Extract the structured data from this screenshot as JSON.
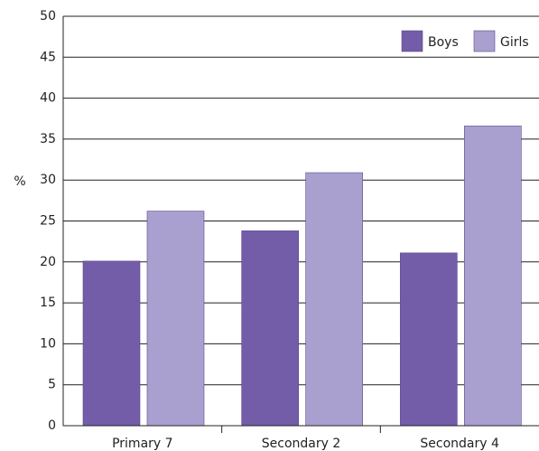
{
  "chart_data": {
    "type": "bar",
    "y_label": "%",
    "categories": [
      "Primary 7",
      "Secondary 2",
      "Secondary 4"
    ],
    "series": [
      {
        "name": "Boys",
        "color": "#735ca8",
        "values": [
          20.1,
          23.8,
          21.1
        ]
      },
      {
        "name": "Girls",
        "color": "#aaa0cf",
        "values": [
          26.2,
          30.9,
          36.6
        ]
      }
    ],
    "ylim": [
      0,
      50
    ],
    "yticks": [
      0,
      5,
      10,
      15,
      20,
      25,
      30,
      35,
      40,
      45,
      50
    ],
    "grid": true,
    "legend": "upper right"
  }
}
